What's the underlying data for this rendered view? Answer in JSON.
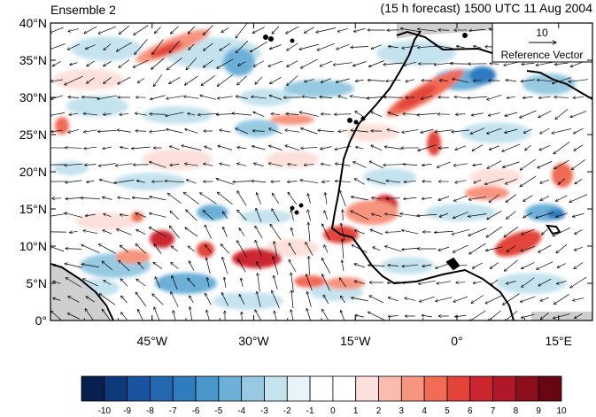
{
  "header": {
    "left_title": "Ensemble 2",
    "right_title": "(15 h forecast) 1500 UTC 11 Aug 2004"
  },
  "map": {
    "lon_range": [
      -60,
      20
    ],
    "lat_range": [
      0,
      40
    ],
    "lat_labels": [
      "0°",
      "5°N",
      "10°N",
      "15°N",
      "20°N",
      "25°N",
      "30°N",
      "35°N",
      "40°N"
    ],
    "lat_values": [
      0,
      5,
      10,
      15,
      20,
      25,
      30,
      35,
      40
    ],
    "lon_labels": [
      "45°W",
      "30°W",
      "15°W",
      "0°",
      "15°E"
    ],
    "lon_values": [
      -45,
      -30,
      -15,
      0,
      15
    ],
    "land_mask_color": "#cfcfcf",
    "coastline_color": "#000000"
  },
  "reference_vector": {
    "magnitude": "10",
    "label": "Reference Vector"
  },
  "colorbar": {
    "labels": [
      "-10",
      "-9",
      "-8",
      "-7",
      "-6",
      "-5",
      "-4",
      "-3",
      "-2",
      "-1",
      "0",
      "1",
      "2",
      "3",
      "4",
      "5",
      "6",
      "7",
      "8",
      "9",
      "10"
    ],
    "colors": [
      "#08204f",
      "#0d3a7a",
      "#1a54a0",
      "#2468b0",
      "#2f7cbf",
      "#4a97cc",
      "#6cb0d8",
      "#97cae2",
      "#c5e3ef",
      "#e8f4fa",
      "#ffffff",
      "#ffffff",
      "#fde0dc",
      "#fbbcaf",
      "#f7947f",
      "#f16b55",
      "#e2443a",
      "#cc2530",
      "#b01828",
      "#8c0f1d",
      "#680711"
    ]
  }
}
